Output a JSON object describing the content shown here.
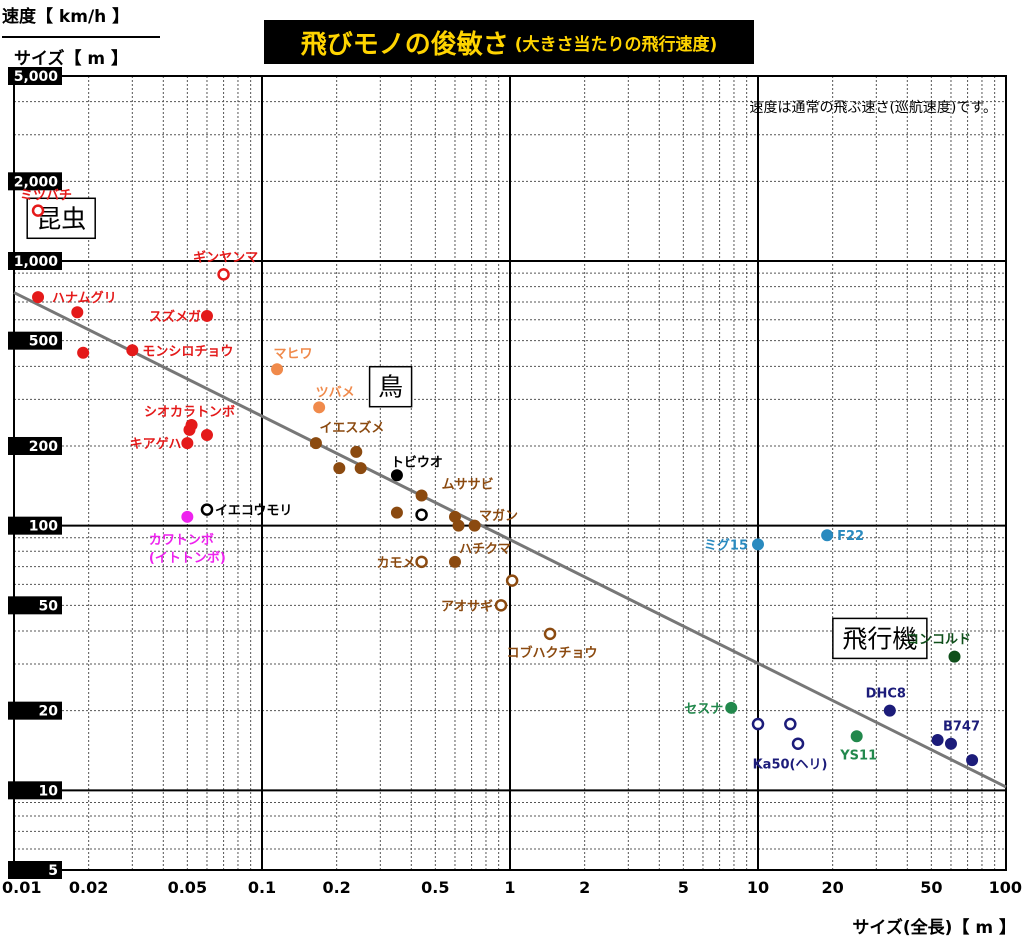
{
  "title": "飛びモノの俊敏さ",
  "subtitle": "(大きさ当たりの飛行速度)",
  "ylabel_top": "速度【 km/h 】",
  "ylabel_bottom": "サイズ【 m 】",
  "xlabel": "サイズ(全長)【 m 】",
  "colors": {
    "insect": "#e41a1a",
    "bird_light": "#f08a4b",
    "bird": "#8b4a10",
    "bat": "#000000",
    "magenta": "#ee22ee",
    "military": "#2a8abf",
    "civil": "#22884c",
    "jet": "#1c1c7a",
    "concorde": "#0f4f1a",
    "trend": "#777777"
  },
  "chart_data": {
    "type": "scatter",
    "x_scale": "log",
    "y_scale": "log",
    "xlim": [
      0.01,
      100
    ],
    "ylim": [
      5,
      5000
    ],
    "x_ticks": [
      {
        "v": 0.01,
        "label": "0.01"
      },
      {
        "v": 0.02,
        "label": "0.02"
      },
      {
        "v": 0.05,
        "label": "0.05"
      },
      {
        "v": 0.1,
        "label": "0.1"
      },
      {
        "v": 0.2,
        "label": "0.2"
      },
      {
        "v": 0.5,
        "label": "0.5"
      },
      {
        "v": 1,
        "label": "1"
      },
      {
        "v": 2,
        "label": "2"
      },
      {
        "v": 5,
        "label": "5"
      },
      {
        "v": 10,
        "label": "10"
      },
      {
        "v": 20,
        "label": "20"
      },
      {
        "v": 50,
        "label": "50"
      },
      {
        "v": 100,
        "label": "100"
      }
    ],
    "y_ticks": [
      {
        "v": 5,
        "label": "5"
      },
      {
        "v": 10,
        "label": "10"
      },
      {
        "v": 20,
        "label": "20"
      },
      {
        "v": 50,
        "label": "50"
      },
      {
        "v": 100,
        "label": "100"
      },
      {
        "v": 200,
        "label": "200"
      },
      {
        "v": 500,
        "label": "500"
      },
      {
        "v": 1000,
        "label": "1,000"
      },
      {
        "v": 2000,
        "label": "2,000"
      },
      {
        "v": 5000,
        "label": "5,000"
      }
    ],
    "grid": true,
    "trend": [
      [
        0.01,
        760
      ],
      [
        100,
        10.3
      ]
    ],
    "region_labels": [
      {
        "text": "昆虫",
        "x": 0.0155,
        "y": 1450
      },
      {
        "text": "鳥",
        "x": 0.33,
        "y": 335
      },
      {
        "text": "飛行機",
        "x": 31,
        "y": 37.5
      }
    ],
    "note": "速度は通常の飛ぶ速さ(巡航速度)です。",
    "points": [
      {
        "x": 0.0125,
        "y": 1550,
        "c": "insect",
        "open": true,
        "label": "ミツバチ",
        "ldx": 8,
        "ldy": -16,
        "la": "middle"
      },
      {
        "x": 0.0125,
        "y": 730,
        "c": "insect",
        "label": "ハナムグリ",
        "ldx": 14,
        "ldy": 0,
        "la": "start"
      },
      {
        "x": 0.018,
        "y": 640,
        "c": "insect"
      },
      {
        "x": 0.019,
        "y": 450,
        "c": "insect"
      },
      {
        "x": 0.07,
        "y": 890,
        "c": "insect",
        "open": true,
        "label": "ギンヤンマ",
        "ldx": 2,
        "ldy": -18,
        "la": "middle"
      },
      {
        "x": 0.06,
        "y": 620,
        "c": "insect",
        "label": "スズメガ",
        "ldx": -6,
        "ldy": 0,
        "la": "end"
      },
      {
        "x": 0.03,
        "y": 460,
        "c": "insect",
        "label": "モンシロチョウ",
        "ldx": 10,
        "ldy": 0,
        "la": "start"
      },
      {
        "x": 0.052,
        "y": 240,
        "c": "insect",
        "label": "シオカラトンボ",
        "ldx": -2,
        "ldy": -14,
        "la": "middle"
      },
      {
        "x": 0.051,
        "y": 230,
        "c": "insect"
      },
      {
        "x": 0.06,
        "y": 220,
        "c": "insect"
      },
      {
        "x": 0.05,
        "y": 205,
        "c": "insect",
        "label": "キアゲハ",
        "ldx": -6,
        "ldy": 0,
        "la": "end"
      },
      {
        "x": 0.115,
        "y": 390,
        "c": "bird_light",
        "label": "マヒワ",
        "ldx": 16,
        "ldy": -16,
        "la": "middle"
      },
      {
        "x": 0.17,
        "y": 280,
        "c": "bird_light",
        "label": "ツバメ",
        "ldx": 16,
        "ldy": -16,
        "la": "middle"
      },
      {
        "x": 0.165,
        "y": 205,
        "c": "bird",
        "label": "イエスズメ",
        "ldx": 36,
        "ldy": -16,
        "la": "middle"
      },
      {
        "x": 0.205,
        "y": 165,
        "c": "bird"
      },
      {
        "x": 0.24,
        "y": 190,
        "c": "bird"
      },
      {
        "x": 0.25,
        "y": 165,
        "c": "bird"
      },
      {
        "x": 0.35,
        "y": 155,
        "c": "bat",
        "label": "トビウオ",
        "ldx": 20,
        "ldy": -14,
        "la": "middle"
      },
      {
        "x": 0.35,
        "y": 112,
        "c": "bird"
      },
      {
        "x": 0.44,
        "y": 130,
        "c": "bird",
        "label": "ムササビ",
        "ldx": 20,
        "ldy": -12,
        "la": "start"
      },
      {
        "x": 0.44,
        "y": 110,
        "c": "bat",
        "open": true
      },
      {
        "x": 0.6,
        "y": 108,
        "c": "bird",
        "label": "マガン",
        "ldx": 24,
        "ldy": -2,
        "la": "start"
      },
      {
        "x": 0.62,
        "y": 100,
        "c": "bird"
      },
      {
        "x": 0.72,
        "y": 100,
        "c": "bird"
      },
      {
        "x": 0.44,
        "y": 73,
        "c": "bird",
        "open": true,
        "label": "カモメ",
        "ldx": -6,
        "ldy": 0,
        "la": "end"
      },
      {
        "x": 0.6,
        "y": 73,
        "c": "bird",
        "label": "ハチクマ",
        "ldx": 4,
        "ldy": -14,
        "la": "start"
      },
      {
        "x": 1.02,
        "y": 62,
        "c": "bird",
        "open": true
      },
      {
        "x": 0.92,
        "y": 50,
        "c": "bird",
        "open": true,
        "label": "アオサギ",
        "ldx": -8,
        "ldy": 0,
        "la": "end"
      },
      {
        "x": 1.45,
        "y": 39,
        "c": "bird",
        "open": true,
        "label": "コブハクチョウ",
        "ldx": 2,
        "ldy": 18,
        "la": "middle"
      },
      {
        "x": 0.05,
        "y": 108,
        "c": "magenta",
        "label": "カワトンボ",
        "ldx": -6,
        "ldy": 22,
        "la": "middle"
      },
      {
        "x": 0.05,
        "y": 108,
        "c": "magenta",
        "noDot": true,
        "label": "(イトトンボ)",
        "ldx": 0,
        "ldy": 40,
        "la": "middle"
      },
      {
        "x": 0.06,
        "y": 115,
        "c": "bat",
        "open": true,
        "label": "イエコウモリ",
        "ldx": 8,
        "ldy": 0,
        "la": "start"
      },
      {
        "x": 10,
        "y": 85,
        "c": "military",
        "label": "ミグ15",
        "ldx": -10,
        "ldy": 0,
        "la": "end"
      },
      {
        "x": 19,
        "y": 92,
        "c": "military",
        "label": "F22",
        "ldx": 10,
        "ldy": 0,
        "la": "start"
      },
      {
        "x": 62,
        "y": 32,
        "c": "concorde",
        "label": "コンコルド",
        "ldx": -16,
        "ldy": -18,
        "la": "middle"
      },
      {
        "x": 7.8,
        "y": 20.5,
        "c": "civil",
        "label": "セスナ",
        "ldx": -8,
        "ldy": 0,
        "la": "end"
      },
      {
        "x": 25,
        "y": 16,
        "c": "civil",
        "label": "YS11",
        "ldx": 2,
        "ldy": 18,
        "la": "middle"
      },
      {
        "x": 10,
        "y": 17.8,
        "c": "jet",
        "open": true
      },
      {
        "x": 13.5,
        "y": 17.8,
        "c": "jet",
        "open": true
      },
      {
        "x": 14.5,
        "y": 15,
        "c": "jet",
        "open": true,
        "label": "Ka50(ヘリ)",
        "ldx": -8,
        "ldy": 20,
        "la": "middle"
      },
      {
        "x": 34,
        "y": 20,
        "c": "jet",
        "label": "DHC8",
        "ldx": -4,
        "ldy": -18,
        "la": "middle"
      },
      {
        "x": 53,
        "y": 15.5,
        "c": "jet"
      },
      {
        "x": 60,
        "y": 15,
        "c": "jet",
        "label": "B747",
        "ldx": -8,
        "ldy": -18,
        "la": "start"
      },
      {
        "x": 73,
        "y": 13,
        "c": "jet"
      }
    ]
  }
}
